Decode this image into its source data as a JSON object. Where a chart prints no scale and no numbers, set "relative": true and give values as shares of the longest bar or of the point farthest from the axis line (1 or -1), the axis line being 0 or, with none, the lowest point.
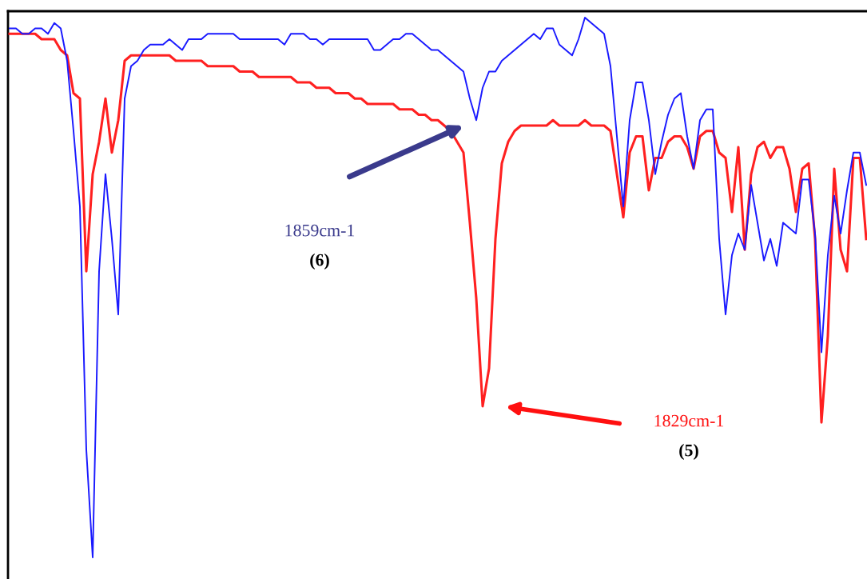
{
  "chart_data": {
    "type": "line",
    "relative": true,
    "grid": false,
    "legend": false,
    "marker": "none",
    "line_style": "solid",
    "categories": [
      null,
      null,
      null,
      null,
      null,
      null,
      null,
      null,
      null,
      null,
      null,
      null,
      null,
      null,
      null,
      null,
      null,
      null,
      null,
      null,
      null,
      null,
      null,
      null,
      null,
      null,
      null,
      null,
      null,
      null,
      null,
      null,
      null,
      null,
      null,
      null,
      null,
      null,
      null,
      null,
      null,
      null,
      null,
      null,
      null,
      null,
      null,
      null,
      null,
      null,
      null,
      null,
      null,
      null,
      null,
      null,
      null,
      null,
      null,
      null,
      null,
      null,
      null,
      null,
      null,
      null,
      null,
      null,
      null,
      null,
      null,
      null,
      null,
      null,
      null,
      null,
      null,
      null,
      null,
      null,
      null,
      null,
      null,
      null,
      null,
      null,
      null,
      null,
      null,
      null,
      null,
      null,
      null,
      null,
      null,
      null,
      null,
      null,
      null,
      null,
      null,
      null,
      null,
      null,
      null,
      null,
      null,
      null,
      null,
      null,
      null,
      null,
      null,
      null,
      null,
      null,
      null,
      null,
      null,
      null,
      null,
      null,
      null,
      null,
      null,
      null,
      null,
      null,
      null,
      null,
      null,
      null,
      null,
      null,
      null
    ],
    "series": [
      {
        "color": "#1a1aff",
        "values": [
          0.98,
          0.98,
          0.97,
          0.97,
          0.98,
          0.98,
          0.97,
          0.99,
          0.98,
          0.92,
          0.79,
          0.65,
          0.2,
          0,
          0.53,
          0.71,
          0.59,
          0.45,
          0.85,
          0.91,
          0.92,
          0.94,
          0.95,
          0.95,
          0.95,
          0.96,
          0.95,
          0.94,
          0.96,
          0.96,
          0.96,
          0.97,
          0.97,
          0.97,
          0.97,
          0.97,
          0.96,
          0.96,
          0.96,
          0.96,
          0.96,
          0.96,
          0.96,
          0.95,
          0.97,
          0.97,
          0.97,
          0.96,
          0.96,
          0.95,
          0.96,
          0.96,
          0.96,
          0.96,
          0.96,
          0.96,
          0.96,
          0.94,
          0.94,
          0.95,
          0.96,
          0.96,
          0.97,
          0.97,
          0.96,
          0.95,
          0.94,
          0.94,
          0.93,
          0.92,
          0.91,
          0.9,
          0.85,
          0.81,
          0.87,
          0.9,
          0.9,
          0.92,
          0.93,
          0.94,
          0.95,
          0.96,
          0.97,
          0.96,
          0.98,
          0.98,
          0.95,
          0.94,
          0.93,
          0.96,
          1.0,
          0.99,
          0.98,
          0.97,
          0.91,
          0.78,
          0.65,
          0.81,
          0.88,
          0.88,
          0.81,
          0.71,
          0.77,
          0.82,
          0.85,
          0.86,
          0.78,
          0.72,
          0.81,
          0.83,
          0.83,
          0.59,
          0.45,
          0.56,
          0.6,
          0.57,
          0.69,
          0.62,
          0.55,
          0.59,
          0.54,
          0.62,
          0.61,
          0.6,
          0.7,
          0.7,
          0.6,
          0.38,
          0.56,
          0.67,
          0.6,
          0.68,
          0.75,
          0.75,
          0.69
        ]
      },
      {
        "color": "#ff2020",
        "values": [
          0.97,
          0.97,
          0.97,
          0.97,
          0.97,
          0.96,
          0.96,
          0.96,
          0.94,
          0.93,
          0.86,
          0.85,
          0.53,
          0.71,
          0.77,
          0.85,
          0.75,
          0.81,
          0.92,
          0.93,
          0.93,
          0.93,
          0.93,
          0.93,
          0.93,
          0.93,
          0.92,
          0.92,
          0.92,
          0.92,
          0.92,
          0.91,
          0.91,
          0.91,
          0.91,
          0.91,
          0.9,
          0.9,
          0.9,
          0.89,
          0.89,
          0.89,
          0.89,
          0.89,
          0.89,
          0.88,
          0.88,
          0.88,
          0.87,
          0.87,
          0.87,
          0.86,
          0.86,
          0.86,
          0.85,
          0.85,
          0.84,
          0.84,
          0.84,
          0.84,
          0.84,
          0.83,
          0.83,
          0.83,
          0.82,
          0.82,
          0.81,
          0.81,
          0.8,
          0.79,
          0.77,
          0.75,
          0.62,
          0.48,
          0.28,
          0.35,
          0.59,
          0.73,
          0.77,
          0.79,
          0.8,
          0.8,
          0.8,
          0.8,
          0.8,
          0.81,
          0.8,
          0.8,
          0.8,
          0.8,
          0.81,
          0.8,
          0.8,
          0.8,
          0.79,
          0.71,
          0.63,
          0.75,
          0.78,
          0.78,
          0.68,
          0.74,
          0.74,
          0.77,
          0.78,
          0.78,
          0.76,
          0.72,
          0.78,
          0.79,
          0.79,
          0.75,
          0.74,
          0.64,
          0.76,
          0.57,
          0.71,
          0.76,
          0.77,
          0.74,
          0.76,
          0.76,
          0.72,
          0.64,
          0.72,
          0.73,
          0.59,
          0.25,
          0.41,
          0.72,
          0.57,
          0.53,
          0.74,
          0.74,
          0.59
        ]
      }
    ],
    "annotations": [
      "1859cm-1",
      "(6)",
      "1829cm-1",
      "(5)"
    ]
  }
}
